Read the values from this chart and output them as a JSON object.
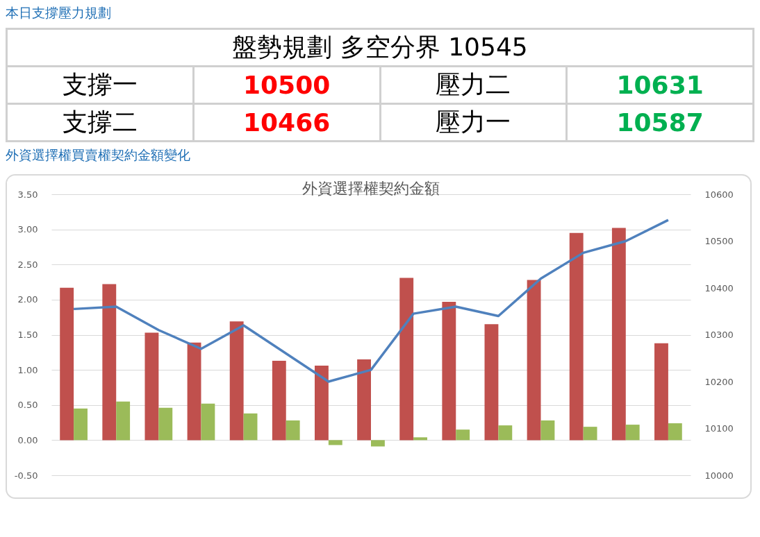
{
  "chart_data": [
    {
      "type": "other",
      "title": "本日支撐壓力規劃",
      "subtitle": "盤勢規劃 多空分界 10545",
      "categories": [
        "支撐一",
        "壓力二",
        "支撐二",
        "壓力一"
      ],
      "values": [
        10500,
        10631,
        10466,
        10587
      ],
      "colors": [
        "#ff0000",
        "#00b050",
        "#ff0000",
        "#00b050"
      ],
      "data_labels": true
    },
    {
      "type": "bar",
      "title": "外資選擇權契約金額",
      "subtitle": "外資選擇權買賣權契約金額變化",
      "categories": [
        null,
        null,
        null,
        null,
        null,
        null,
        null,
        null,
        null,
        null,
        null,
        null,
        null,
        null,
        null
      ],
      "series": [
        {
          "type": "bar",
          "color": "#c0504d",
          "values": [
            2.17,
            2.22,
            1.53,
            1.39,
            1.69,
            1.13,
            1.06,
            1.15,
            2.31,
            1.97,
            1.65,
            2.28,
            2.95,
            3.02,
            1.38
          ]
        },
        {
          "type": "bar",
          "color": "#9bbb59",
          "values": [
            0.45,
            0.55,
            0.46,
            0.52,
            0.38,
            0.28,
            -0.07,
            -0.09,
            0.04,
            0.15,
            0.21,
            0.28,
            0.19,
            0.22,
            0.24
          ]
        },
        {
          "type": "line",
          "axis": "y2",
          "color": "#4f81bd",
          "values": [
            10355,
            10360,
            10310,
            10270,
            10320,
            10260,
            10200,
            10225,
            10345,
            10360,
            10340,
            10420,
            10475,
            10500,
            10545
          ]
        }
      ],
      "ylim": [
        -0.5,
        3.5
      ],
      "yticks": [
        {
          "value": -0.5,
          "label": "-0.50"
        },
        {
          "value": 0,
          "label": "0.00"
        },
        {
          "value": 0.5,
          "label": "0.50"
        },
        {
          "value": 1,
          "label": "1.00"
        },
        {
          "value": 1.5,
          "label": "1.50"
        },
        {
          "value": 2,
          "label": "2.00"
        },
        {
          "value": 2.5,
          "label": "2.50"
        },
        {
          "value": 3,
          "label": "3.00"
        },
        {
          "value": 3.5,
          "label": "3.50"
        }
      ],
      "y2lim": [
        10000,
        10600
      ],
      "y2ticks": [
        10000,
        10100,
        10200,
        10300,
        10400,
        10500,
        10600
      ],
      "grid": "y"
    }
  ]
}
